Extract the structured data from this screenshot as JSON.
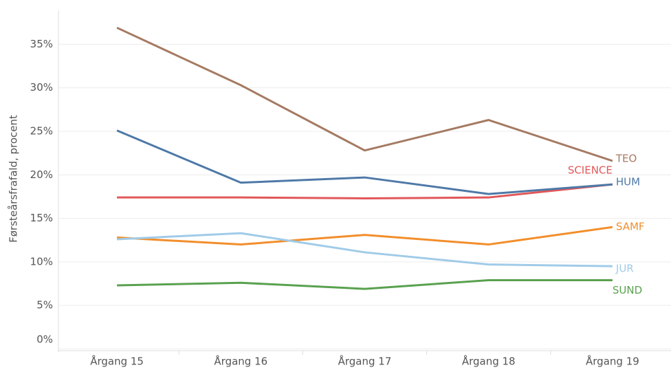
{
  "chart_data": {
    "type": "line",
    "y_label": "Førsteårsfrafald, procent",
    "categories": [
      "Årgang 15",
      "Årgang 16",
      "Årgang 17",
      "Årgang 18",
      "Årgang 19"
    ],
    "series": [
      {
        "name": "TEO",
        "color": "#a57a62",
        "values": [
          36.9,
          30.3,
          22.8,
          26.3,
          21.6
        ]
      },
      {
        "name": "SCIENCE",
        "color": "#e15759",
        "values": [
          17.4,
          17.4,
          17.3,
          17.4,
          18.9
        ]
      },
      {
        "name": "HUM",
        "color": "#4e79a7",
        "values": [
          25.1,
          19.1,
          19.7,
          17.8,
          18.9
        ]
      },
      {
        "name": "SAMF",
        "color": "#f28e2b",
        "values": [
          12.8,
          12.0,
          13.1,
          12.0,
          14.0
        ]
      },
      {
        "name": "JUR",
        "color": "#a0cbe8",
        "values": [
          12.6,
          13.3,
          11.1,
          9.7,
          9.5
        ]
      },
      {
        "name": "SUND",
        "color": "#59a14f",
        "values": [
          7.3,
          7.6,
          6.9,
          7.9,
          7.9
        ]
      }
    ],
    "ylim": [
      -0.2,
      38.9
    ],
    "yticks": [
      {
        "value": 0,
        "label": "0%"
      },
      {
        "value": 5,
        "label": "5%"
      },
      {
        "value": 10,
        "label": "10%"
      },
      {
        "value": 15,
        "label": "15%"
      },
      {
        "value": 20,
        "label": "20%"
      },
      {
        "value": 25,
        "label": "25%"
      },
      {
        "value": 30,
        "label": "30%"
      },
      {
        "value": 35,
        "label": "35%"
      }
    ],
    "grid": true
  }
}
